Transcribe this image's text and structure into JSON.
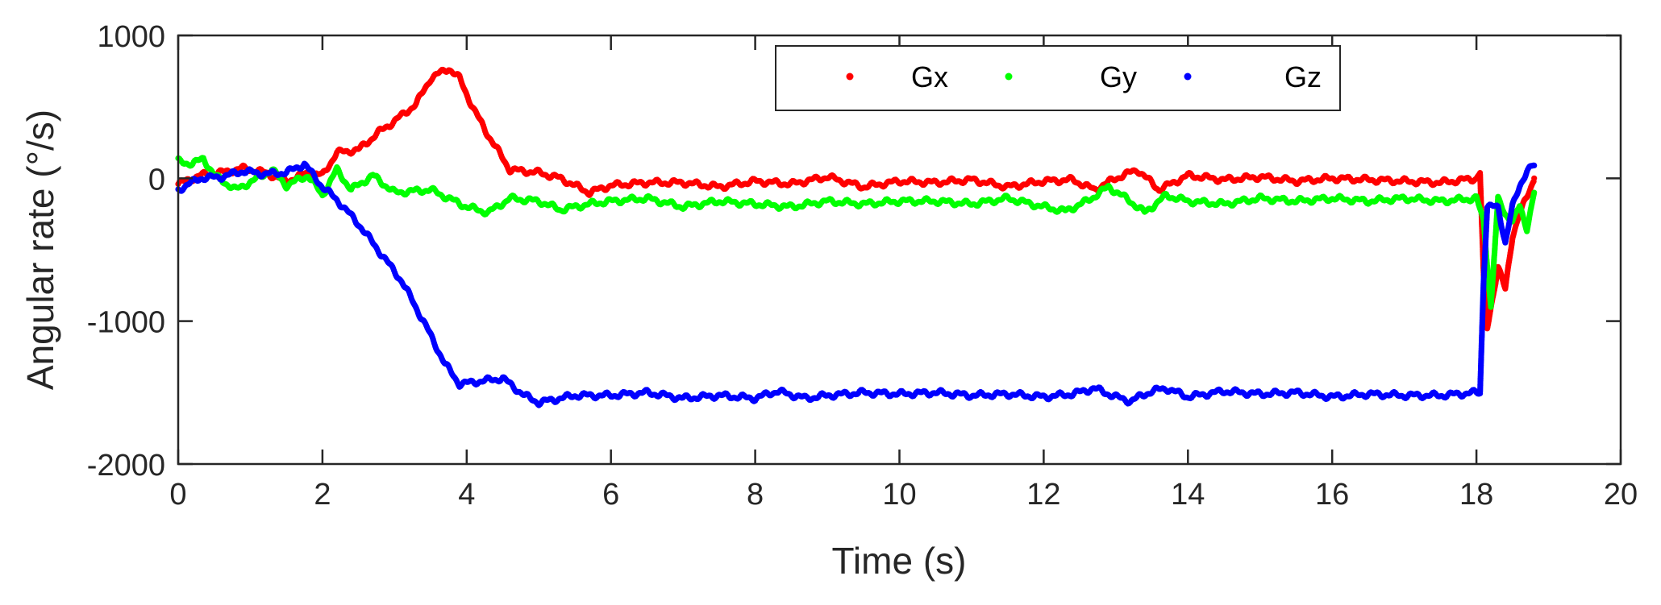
{
  "chart_data": {
    "type": "scatter",
    "title": "",
    "xlabel": "Time (s)",
    "ylabel": "Angular rate (°/s)",
    "xlim": [
      0,
      20
    ],
    "ylim": [
      -2000,
      1000
    ],
    "xticks": [
      0,
      2,
      4,
      6,
      8,
      10,
      12,
      14,
      16,
      18,
      20
    ],
    "yticks": [
      -2000,
      -1000,
      0,
      1000
    ],
    "grid": false,
    "legend": {
      "placement": "top-right",
      "orientation": "horizontal"
    },
    "series": [
      {
        "name": "Gx",
        "color": "#ff0000",
        "points": [
          [
            0,
            -40
          ],
          [
            0.3,
            20
          ],
          [
            0.6,
            40
          ],
          [
            0.9,
            70
          ],
          [
            1.2,
            40
          ],
          [
            1.5,
            -20
          ],
          [
            1.8,
            40
          ],
          [
            2.0,
            20
          ],
          [
            2.2,
            180
          ],
          [
            2.5,
            200
          ],
          [
            2.8,
            330
          ],
          [
            3.0,
            400
          ],
          [
            3.3,
            520
          ],
          [
            3.5,
            700
          ],
          [
            3.75,
            770
          ],
          [
            3.9,
            700
          ],
          [
            4.1,
            480
          ],
          [
            4.3,
            300
          ],
          [
            4.6,
            60
          ],
          [
            5.0,
            40
          ],
          [
            5.3,
            0
          ],
          [
            5.7,
            -100
          ],
          [
            6.0,
            -50
          ],
          [
            6.5,
            -30
          ],
          [
            7.0,
            -30
          ],
          [
            7.5,
            -60
          ],
          [
            8.0,
            -20
          ],
          [
            8.5,
            -40
          ],
          [
            9.0,
            10
          ],
          [
            9.5,
            -60
          ],
          [
            10.0,
            -20
          ],
          [
            10.5,
            -30
          ],
          [
            11.0,
            -10
          ],
          [
            11.5,
            -60
          ],
          [
            12.0,
            -20
          ],
          [
            12.4,
            -10
          ],
          [
            12.7,
            -80
          ],
          [
            13.0,
            0
          ],
          [
            13.3,
            60
          ],
          [
            13.6,
            -80
          ],
          [
            14.0,
            20
          ],
          [
            14.5,
            -10
          ],
          [
            15.0,
            10
          ],
          [
            15.5,
            -20
          ],
          [
            16.0,
            0
          ],
          [
            16.5,
            -10
          ],
          [
            17.0,
            -20
          ],
          [
            17.5,
            -30
          ],
          [
            18.0,
            0
          ],
          [
            18.05,
            40
          ],
          [
            18.1,
            -700
          ],
          [
            18.15,
            -1050
          ],
          [
            18.2,
            -900
          ],
          [
            18.3,
            -620
          ],
          [
            18.4,
            -780
          ],
          [
            18.5,
            -400
          ],
          [
            18.6,
            -250
          ],
          [
            18.7,
            -130
          ],
          [
            18.8,
            0
          ]
        ]
      },
      {
        "name": "Gy",
        "color": "#00ff00",
        "points": [
          [
            0,
            120
          ],
          [
            0.2,
            100
          ],
          [
            0.35,
            140
          ],
          [
            0.5,
            20
          ],
          [
            0.8,
            -80
          ],
          [
            1.1,
            0
          ],
          [
            1.3,
            60
          ],
          [
            1.5,
            -50
          ],
          [
            1.8,
            20
          ],
          [
            2.0,
            -120
          ],
          [
            2.2,
            60
          ],
          [
            2.4,
            -80
          ],
          [
            2.7,
            20
          ],
          [
            3.0,
            -100
          ],
          [
            3.5,
            -80
          ],
          [
            4.0,
            -200
          ],
          [
            4.3,
            -240
          ],
          [
            4.6,
            -140
          ],
          [
            5.0,
            -160
          ],
          [
            5.3,
            -220
          ],
          [
            5.7,
            -180
          ],
          [
            6.0,
            -160
          ],
          [
            6.5,
            -140
          ],
          [
            7.0,
            -200
          ],
          [
            7.5,
            -160
          ],
          [
            8.0,
            -180
          ],
          [
            8.5,
            -200
          ],
          [
            9.0,
            -160
          ],
          [
            9.5,
            -180
          ],
          [
            10.0,
            -160
          ],
          [
            10.5,
            -160
          ],
          [
            11.0,
            -180
          ],
          [
            11.5,
            -140
          ],
          [
            12.0,
            -200
          ],
          [
            12.3,
            -230
          ],
          [
            12.6,
            -160
          ],
          [
            12.9,
            -60
          ],
          [
            13.2,
            -160
          ],
          [
            13.4,
            -240
          ],
          [
            13.7,
            -120
          ],
          [
            14.0,
            -160
          ],
          [
            14.5,
            -180
          ],
          [
            15.0,
            -140
          ],
          [
            15.5,
            -160
          ],
          [
            16.0,
            -140
          ],
          [
            16.5,
            -160
          ],
          [
            17.0,
            -140
          ],
          [
            17.5,
            -160
          ],
          [
            18.0,
            -140
          ],
          [
            18.1,
            -300
          ],
          [
            18.2,
            -900
          ],
          [
            18.3,
            -150
          ],
          [
            18.4,
            -250
          ],
          [
            18.5,
            -300
          ],
          [
            18.6,
            -200
          ],
          [
            18.7,
            -350
          ],
          [
            18.8,
            -100
          ]
        ]
      },
      {
        "name": "Gz",
        "color": "#0000ff",
        "points": [
          [
            0,
            -80
          ],
          [
            0.3,
            0
          ],
          [
            0.6,
            10
          ],
          [
            0.9,
            50
          ],
          [
            1.2,
            30
          ],
          [
            1.5,
            40
          ],
          [
            1.75,
            100
          ],
          [
            2.0,
            -60
          ],
          [
            2.2,
            -150
          ],
          [
            2.5,
            -320
          ],
          [
            2.8,
            -520
          ],
          [
            3.1,
            -720
          ],
          [
            3.4,
            -1000
          ],
          [
            3.7,
            -1300
          ],
          [
            3.9,
            -1440
          ],
          [
            4.2,
            -1420
          ],
          [
            4.5,
            -1400
          ],
          [
            4.8,
            -1520
          ],
          [
            5.0,
            -1570
          ],
          [
            5.5,
            -1520
          ],
          [
            6.0,
            -1520
          ],
          [
            6.5,
            -1500
          ],
          [
            7.0,
            -1540
          ],
          [
            7.5,
            -1520
          ],
          [
            8.0,
            -1540
          ],
          [
            8.3,
            -1490
          ],
          [
            8.7,
            -1540
          ],
          [
            9.0,
            -1520
          ],
          [
            9.5,
            -1500
          ],
          [
            10.0,
            -1510
          ],
          [
            10.5,
            -1500
          ],
          [
            11.0,
            -1520
          ],
          [
            11.5,
            -1510
          ],
          [
            12.0,
            -1530
          ],
          [
            12.4,
            -1510
          ],
          [
            12.7,
            -1470
          ],
          [
            13.0,
            -1530
          ],
          [
            13.2,
            -1560
          ],
          [
            13.5,
            -1490
          ],
          [
            13.7,
            -1470
          ],
          [
            14.0,
            -1530
          ],
          [
            14.5,
            -1490
          ],
          [
            15.0,
            -1510
          ],
          [
            15.5,
            -1500
          ],
          [
            16.0,
            -1530
          ],
          [
            16.5,
            -1510
          ],
          [
            17.0,
            -1520
          ],
          [
            17.5,
            -1520
          ],
          [
            18.0,
            -1500
          ],
          [
            18.05,
            -1500
          ],
          [
            18.1,
            -700
          ],
          [
            18.15,
            -200
          ],
          [
            18.3,
            -200
          ],
          [
            18.4,
            -450
          ],
          [
            18.5,
            -200
          ],
          [
            18.6,
            -50
          ],
          [
            18.7,
            50
          ],
          [
            18.8,
            90
          ]
        ]
      }
    ]
  }
}
